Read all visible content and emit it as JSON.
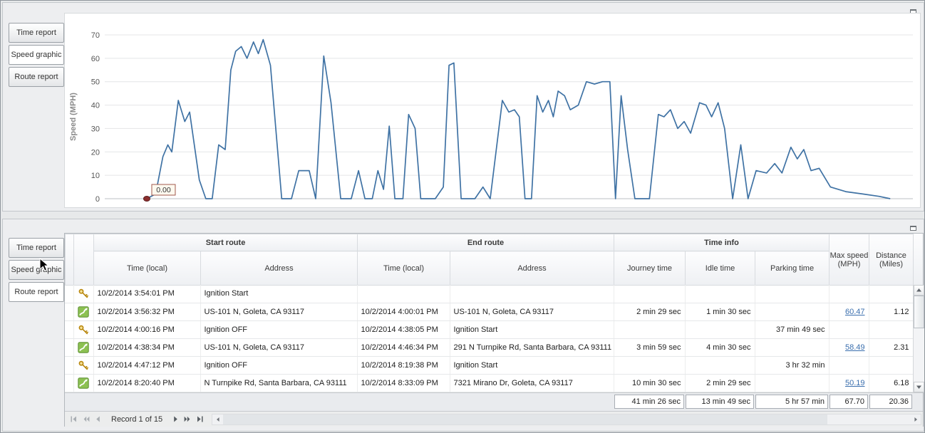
{
  "top_panel": {
    "tabs": [
      {
        "label": "Time report",
        "selected": false
      },
      {
        "label": "Speed graphic",
        "selected": true
      },
      {
        "label": "Route report",
        "selected": false
      }
    ]
  },
  "chart_data": {
    "type": "line",
    "title": "",
    "xlabel": "",
    "ylabel": "Speed (MPH)",
    "ylim": [
      0,
      70
    ],
    "yticks": [
      0,
      10,
      20,
      30,
      40,
      50,
      60,
      70
    ],
    "grid": true,
    "legend": "none",
    "line_color": "#3f72a4",
    "start_marker": {
      "x": 0.052,
      "y": 0,
      "label": "0.00",
      "color": "#8b2e2e"
    },
    "series": [
      {
        "name": "Speed (MPH)",
        "points": [
          [
            0.052,
            0
          ],
          [
            0.063,
            2
          ],
          [
            0.072,
            18
          ],
          [
            0.078,
            23
          ],
          [
            0.083,
            20
          ],
          [
            0.091,
            42
          ],
          [
            0.099,
            33
          ],
          [
            0.105,
            37
          ],
          [
            0.117,
            8
          ],
          [
            0.125,
            0
          ],
          [
            0.133,
            0
          ],
          [
            0.141,
            23
          ],
          [
            0.149,
            21
          ],
          [
            0.156,
            55
          ],
          [
            0.162,
            63
          ],
          [
            0.169,
            65
          ],
          [
            0.176,
            60
          ],
          [
            0.184,
            67
          ],
          [
            0.19,
            62
          ],
          [
            0.196,
            68
          ],
          [
            0.205,
            57
          ],
          [
            0.219,
            0
          ],
          [
            0.231,
            0
          ],
          [
            0.24,
            12
          ],
          [
            0.253,
            12
          ],
          [
            0.261,
            0
          ],
          [
            0.271,
            61
          ],
          [
            0.28,
            41
          ],
          [
            0.292,
            0
          ],
          [
            0.305,
            0
          ],
          [
            0.314,
            12
          ],
          [
            0.322,
            0
          ],
          [
            0.331,
            0
          ],
          [
            0.338,
            12
          ],
          [
            0.345,
            4
          ],
          [
            0.352,
            31
          ],
          [
            0.359,
            0
          ],
          [
            0.369,
            0
          ],
          [
            0.376,
            36
          ],
          [
            0.384,
            30
          ],
          [
            0.391,
            0
          ],
          [
            0.409,
            0
          ],
          [
            0.419,
            5
          ],
          [
            0.426,
            57
          ],
          [
            0.432,
            58
          ],
          [
            0.441,
            0
          ],
          [
            0.458,
            0
          ],
          [
            0.468,
            5
          ],
          [
            0.477,
            0
          ],
          [
            0.492,
            42
          ],
          [
            0.5,
            37
          ],
          [
            0.507,
            38
          ],
          [
            0.513,
            35
          ],
          [
            0.52,
            0
          ],
          [
            0.528,
            0
          ],
          [
            0.535,
            44
          ],
          [
            0.542,
            37
          ],
          [
            0.549,
            42
          ],
          [
            0.555,
            35
          ],
          [
            0.561,
            46
          ],
          [
            0.569,
            44
          ],
          [
            0.576,
            38
          ],
          [
            0.586,
            40
          ],
          [
            0.596,
            50
          ],
          [
            0.606,
            49
          ],
          [
            0.616,
            50
          ],
          [
            0.625,
            50
          ],
          [
            0.632,
            0
          ],
          [
            0.639,
            44
          ],
          [
            0.647,
            21
          ],
          [
            0.656,
            0
          ],
          [
            0.674,
            0
          ],
          [
            0.685,
            36
          ],
          [
            0.692,
            35
          ],
          [
            0.7,
            38
          ],
          [
            0.709,
            30
          ],
          [
            0.717,
            33
          ],
          [
            0.725,
            28
          ],
          [
            0.736,
            41
          ],
          [
            0.744,
            40
          ],
          [
            0.751,
            35
          ],
          [
            0.759,
            41
          ],
          [
            0.767,
            30
          ],
          [
            0.777,
            0
          ],
          [
            0.787,
            23
          ],
          [
            0.796,
            0
          ],
          [
            0.806,
            12
          ],
          [
            0.819,
            11
          ],
          [
            0.829,
            15
          ],
          [
            0.838,
            11
          ],
          [
            0.849,
            22
          ],
          [
            0.857,
            17
          ],
          [
            0.865,
            21
          ],
          [
            0.874,
            12
          ],
          [
            0.884,
            13
          ],
          [
            0.898,
            5
          ],
          [
            0.917,
            3
          ],
          [
            0.938,
            2
          ],
          [
            0.958,
            1
          ],
          [
            0.972,
            0
          ]
        ]
      }
    ]
  },
  "bottom_panel": {
    "tabs": [
      {
        "label": "Time report",
        "selected": false
      },
      {
        "label": "Speed graphic",
        "selected": false
      },
      {
        "label": "Route report",
        "selected": true
      }
    ],
    "table": {
      "group_headers": [
        "Start route",
        "End route",
        "Time info"
      ],
      "sub_headers": [
        "Time (local)",
        "Address",
        "Time (local)",
        "Address",
        "Journey time",
        "Idle time",
        "Parking time"
      ],
      "max_speed_header_line1": "Max speed",
      "max_speed_header_line2": "(MPH)",
      "distance_header_line1": "Distance",
      "distance_header_line2": "(Miles)",
      "rows": [
        {
          "icon": "key",
          "start_time": "10/2/2014 3:54:01 PM",
          "start_address": "Ignition Start",
          "end_time": "",
          "end_address": "",
          "journey": "",
          "idle": "",
          "parking": "",
          "max_speed": "",
          "max_speed_link": false,
          "distance": ""
        },
        {
          "icon": "route",
          "start_time": "10/2/2014 3:56:32 PM",
          "start_address": "US-101 N, Goleta, CA 93117",
          "end_time": "10/2/2014 4:00:01 PM",
          "end_address": "US-101 N, Goleta, CA 93117",
          "journey": "2 min 29 sec",
          "idle": "1 min 30 sec",
          "parking": "",
          "max_speed": "60.47",
          "max_speed_link": true,
          "distance": "1.12"
        },
        {
          "icon": "key",
          "start_time": "10/2/2014 4:00:16 PM",
          "start_address": "Ignition OFF",
          "end_time": "10/2/2014 4:38:05 PM",
          "end_address": "Ignition Start",
          "journey": "",
          "idle": "",
          "parking": "37 min 49 sec",
          "max_speed": "",
          "max_speed_link": false,
          "distance": ""
        },
        {
          "icon": "route",
          "start_time": "10/2/2014 4:38:34 PM",
          "start_address": "US-101 N, Goleta, CA 93117",
          "end_time": "10/2/2014 4:46:34 PM",
          "end_address": "291 N Turnpike Rd, Santa Barbara, CA 93111",
          "journey": "3 min 59 sec",
          "idle": "4 min 30 sec",
          "parking": "",
          "max_speed": "58.49",
          "max_speed_link": true,
          "distance": "2.31"
        },
        {
          "icon": "key",
          "start_time": "10/2/2014 4:47:12 PM",
          "start_address": "Ignition OFF",
          "end_time": "10/2/2014 8:19:38 PM",
          "end_address": "Ignition Start",
          "journey": "",
          "idle": "",
          "parking": "3 hr 32 min",
          "max_speed": "",
          "max_speed_link": false,
          "distance": ""
        },
        {
          "icon": "route",
          "start_time": "10/2/2014 8:20:40 PM",
          "start_address": "N Turnpike Rd, Santa Barbara, CA 93111",
          "end_time": "10/2/2014 8:33:09 PM",
          "end_address": "7321 Mirano Dr, Goleta, CA 93117",
          "journey": "10 min 30 sec",
          "idle": "2 min 29 sec",
          "parking": "",
          "max_speed": "50.19",
          "max_speed_link": true,
          "distance": "6.18"
        }
      ],
      "summary": {
        "journey_time": "41 min 26 sec",
        "idle_time": "13 min 49 sec",
        "parking_time": "5 hr 57 min",
        "max_speed": "67.70",
        "distance": "20.36"
      }
    },
    "navigator": {
      "label": "Record 1 of 15"
    }
  },
  "colors": {
    "line": "#3f72a4",
    "link": "#3b6fae",
    "marker": "#8b2e2e"
  }
}
